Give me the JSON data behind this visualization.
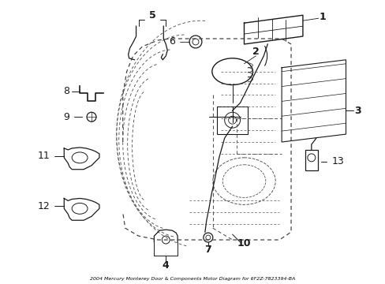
{
  "background_color": "#ffffff",
  "line_color": "#1a1a1a",
  "fig_width": 4.89,
  "fig_height": 3.6,
  "dpi": 100,
  "bottom_label": "2004 Mercury Monterey Door & Components Motor Diagram for 6F2Z-7823394-BA"
}
